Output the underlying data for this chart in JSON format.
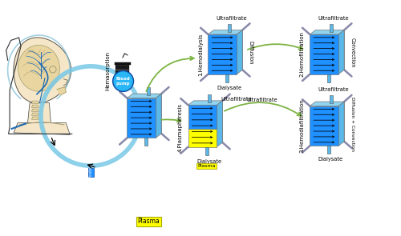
{
  "bg_color": "#ffffff",
  "filter_color": "#1e90ff",
  "filter_side_color": "#5bc8f5",
  "filter_dark_side": "#64b5f6",
  "arrow_color": "#000000",
  "green_arrow_color": "#7cb342",
  "blood_pump_color": "#29b6f6",
  "blood_pump_text": "Blood\npump",
  "plasma_yellow": "#ffff00",
  "plasma_label": "Plasma",
  "labels": {
    "hematosorption": "Hemasorption",
    "hd": "1.Hemodialysis",
    "hf": "2.Hemofiltration",
    "hdf": "3.Hemodiafiltration",
    "plas": "4.Plasmapheresis"
  },
  "transport_labels": {
    "hd": "Diffusion",
    "hf": "Convection",
    "hdf": "Diffusion + Convection"
  },
  "port_labels": {
    "ultrafiltrate": "Ultrafiltrate",
    "dialysate": "Dialysate"
  },
  "circuit_color": "#78c8e6",
  "circuit_lw": 4.5,
  "skin_color": "#f5e6c8",
  "bone_color": "#e8d5a0",
  "vein_color": "#1e6bb5"
}
